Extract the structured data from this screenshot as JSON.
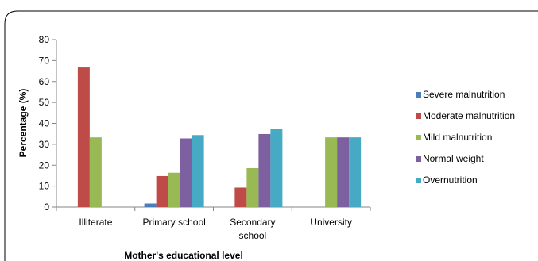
{
  "chart_data": {
    "type": "bar",
    "categories": [
      "Illiterate",
      "Primary school",
      "Secondary school",
      "University"
    ],
    "category_label_lines": [
      [
        "Illiterate"
      ],
      [
        "Primary school"
      ],
      [
        "Secondary",
        "school"
      ],
      [
        "University"
      ]
    ],
    "series": [
      {
        "name": "Severe malnutrition",
        "color": "#4a7ebb",
        "values": [
          0,
          1.7,
          0,
          0
        ]
      },
      {
        "name": "Moderate malnutrition",
        "color": "#be4b48",
        "values": [
          66.7,
          14.8,
          9.3,
          0
        ]
      },
      {
        "name": "Mild malnutrition",
        "color": "#98b954",
        "values": [
          33.3,
          16.4,
          18.6,
          33.3
        ]
      },
      {
        "name": "Normal weight",
        "color": "#7d60a0",
        "values": [
          0,
          32.8,
          34.9,
          33.3
        ]
      },
      {
        "name": "Overnutrition",
        "color": "#46aac5",
        "values": [
          0,
          34.4,
          37.2,
          33.3
        ]
      }
    ],
    "xlabel": "Mother's educational level",
    "ylabel": "Percentage (%)",
    "ylim": [
      0,
      80
    ],
    "yticks": [
      0,
      10,
      20,
      30,
      40,
      50,
      60,
      70,
      80
    ],
    "grid": false,
    "legend_position": "right"
  }
}
